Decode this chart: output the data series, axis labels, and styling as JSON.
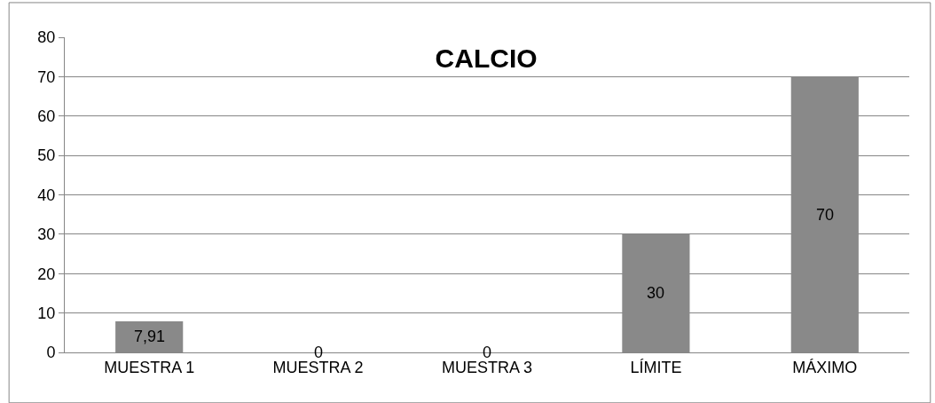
{
  "chart_data": {
    "type": "bar",
    "title": "CALCIO",
    "categories": [
      "MUESTRA 1",
      "MUESTRA 2",
      "MUESTRA 3",
      "LÍMITE",
      "MÁXIMO"
    ],
    "values": [
      7.91,
      0,
      0,
      30,
      70
    ],
    "value_labels": [
      "7,91",
      "0",
      "0",
      "30",
      "70"
    ],
    "color": "#898989",
    "ylim": [
      0,
      80
    ],
    "yticks": [
      0,
      10,
      20,
      30,
      40,
      50,
      60,
      70,
      80
    ],
    "grid": "y",
    "legend": false
  }
}
